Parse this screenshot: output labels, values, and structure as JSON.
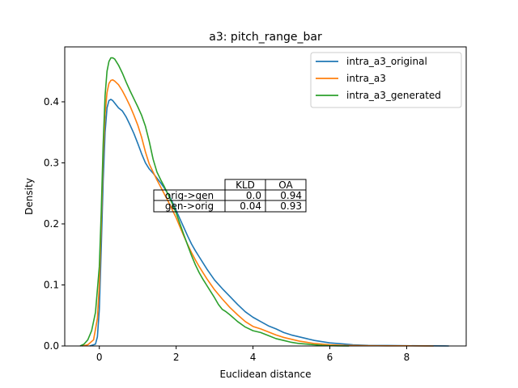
{
  "chart_data": {
    "type": "line",
    "title": "a3: pitch_range_bar",
    "xlabel": "Euclidean distance",
    "ylabel": "Density",
    "xlim": [
      -0.9,
      9.55
    ],
    "ylim": [
      0,
      0.49
    ],
    "xticks": [
      0,
      2,
      4,
      6,
      8
    ],
    "yticks": [
      0.0,
      0.1,
      0.2,
      0.3,
      0.4
    ],
    "ytick_labels": [
      "0.0",
      "0.1",
      "0.2",
      "0.3",
      "0.4"
    ],
    "grid": false,
    "legend_position": "top-right",
    "series": [
      {
        "name": "intra_a3_original",
        "color": "#1f77b4",
        "x": [
          -0.25,
          -0.1,
          -0.05,
          0.0,
          0.05,
          0.1,
          0.15,
          0.2,
          0.25,
          0.3,
          0.35,
          0.4,
          0.5,
          0.6,
          0.7,
          0.8,
          0.9,
          1.0,
          1.1,
          1.2,
          1.3,
          1.4,
          1.5,
          1.6,
          1.7,
          1.8,
          1.9,
          2.0,
          2.1,
          2.2,
          2.3,
          2.4,
          2.5,
          2.6,
          2.7,
          2.8,
          2.9,
          3.0,
          3.2,
          3.4,
          3.6,
          3.8,
          4.0,
          4.2,
          4.4,
          4.6,
          4.8,
          5.0,
          5.2,
          5.4,
          5.6,
          5.8,
          6.0,
          6.2,
          6.4,
          6.6,
          6.8,
          7.0,
          7.5,
          8.0,
          8.5,
          9.0,
          9.1
        ],
        "y": [
          0.0,
          0.003,
          0.015,
          0.06,
          0.16,
          0.27,
          0.35,
          0.39,
          0.402,
          0.404,
          0.402,
          0.398,
          0.39,
          0.385,
          0.375,
          0.362,
          0.348,
          0.332,
          0.315,
          0.3,
          0.29,
          0.283,
          0.275,
          0.267,
          0.258,
          0.248,
          0.236,
          0.222,
          0.208,
          0.194,
          0.18,
          0.167,
          0.156,
          0.146,
          0.136,
          0.126,
          0.117,
          0.108,
          0.094,
          0.081,
          0.068,
          0.056,
          0.047,
          0.04,
          0.033,
          0.028,
          0.022,
          0.018,
          0.015,
          0.012,
          0.009,
          0.007,
          0.005,
          0.004,
          0.003,
          0.002,
          0.0015,
          0.001,
          0.0007,
          0.0004,
          0.0002,
          0.0001,
          0.0
        ]
      },
      {
        "name": "intra_a3",
        "color": "#ff7f0e",
        "x": [
          -0.45,
          -0.3,
          -0.15,
          -0.05,
          0.0,
          0.05,
          0.1,
          0.15,
          0.2,
          0.25,
          0.3,
          0.35,
          0.4,
          0.5,
          0.6,
          0.7,
          0.8,
          0.9,
          1.0,
          1.1,
          1.2,
          1.3,
          1.4,
          1.5,
          1.6,
          1.7,
          1.8,
          1.9,
          2.0,
          2.1,
          2.2,
          2.3,
          2.4,
          2.5,
          2.6,
          2.7,
          2.8,
          2.9,
          3.0,
          3.2,
          3.4,
          3.6,
          3.8,
          4.0,
          4.2,
          4.4,
          4.6,
          4.8,
          5.0,
          5.2,
          5.4,
          5.6,
          5.8,
          6.0,
          6.2,
          6.4,
          6.6,
          7.0,
          7.5,
          8.0,
          8.5,
          8.7
        ],
        "y": [
          0.0,
          0.002,
          0.01,
          0.045,
          0.1,
          0.2,
          0.31,
          0.38,
          0.415,
          0.43,
          0.435,
          0.436,
          0.434,
          0.428,
          0.418,
          0.406,
          0.393,
          0.378,
          0.362,
          0.342,
          0.318,
          0.298,
          0.285,
          0.272,
          0.26,
          0.248,
          0.236,
          0.223,
          0.21,
          0.195,
          0.18,
          0.166,
          0.153,
          0.141,
          0.13,
          0.12,
          0.11,
          0.101,
          0.092,
          0.077,
          0.063,
          0.051,
          0.04,
          0.032,
          0.028,
          0.023,
          0.018,
          0.014,
          0.011,
          0.008,
          0.006,
          0.004,
          0.003,
          0.002,
          0.0015,
          0.001,
          0.0008,
          0.0005,
          0.0003,
          0.0002,
          0.0001,
          0.0
        ]
      },
      {
        "name": "intra_a3_generated",
        "color": "#2ca02c",
        "x": [
          -0.5,
          -0.4,
          -0.3,
          -0.2,
          -0.1,
          0.0,
          0.05,
          0.1,
          0.15,
          0.2,
          0.25,
          0.3,
          0.35,
          0.4,
          0.5,
          0.6,
          0.7,
          0.8,
          0.9,
          1.0,
          1.1,
          1.2,
          1.3,
          1.4,
          1.5,
          1.6,
          1.7,
          1.8,
          1.9,
          2.0,
          2.1,
          2.2,
          2.3,
          2.4,
          2.5,
          2.6,
          2.7,
          2.8,
          2.9,
          3.0,
          3.1,
          3.2,
          3.3,
          3.4,
          3.6,
          3.8,
          4.0,
          4.2,
          4.4,
          4.6,
          4.8,
          5.0,
          5.2,
          5.4,
          5.6,
          5.8,
          6.0,
          6.2,
          6.5
        ],
        "y": [
          0.0,
          0.003,
          0.01,
          0.025,
          0.055,
          0.13,
          0.22,
          0.33,
          0.41,
          0.45,
          0.466,
          0.472,
          0.472,
          0.47,
          0.46,
          0.447,
          0.432,
          0.418,
          0.405,
          0.392,
          0.378,
          0.36,
          0.335,
          0.306,
          0.285,
          0.272,
          0.26,
          0.247,
          0.233,
          0.218,
          0.2,
          0.182,
          0.165,
          0.148,
          0.133,
          0.12,
          0.109,
          0.099,
          0.089,
          0.079,
          0.068,
          0.06,
          0.056,
          0.051,
          0.04,
          0.031,
          0.025,
          0.022,
          0.017,
          0.012,
          0.009,
          0.006,
          0.004,
          0.003,
          0.002,
          0.001,
          0.0005,
          0.0002,
          0.0
        ]
      }
    ],
    "table": {
      "columns": [
        "KLD",
        "OA"
      ],
      "rows": [
        {
          "label": "orig->gen",
          "values": [
            "0.0",
            "0.94"
          ]
        },
        {
          "label": "gen->orig",
          "values": [
            "0.04",
            "0.93"
          ]
        }
      ]
    }
  }
}
